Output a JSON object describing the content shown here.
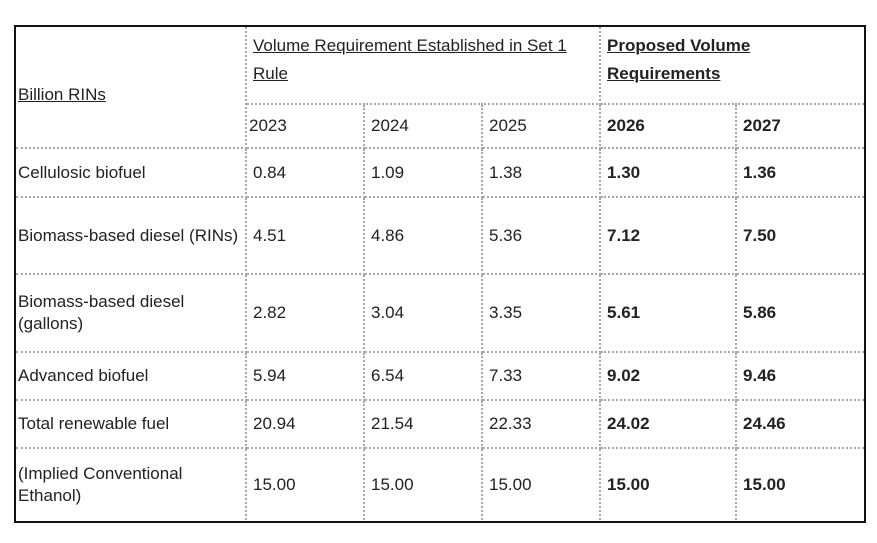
{
  "table": {
    "header": {
      "row_label": "Billion RINs",
      "group_set1": "Volume Requirement Established in Set 1 Rule",
      "group_proposed": "Proposed Volume Requirements",
      "years": [
        "2023",
        "2024",
        "2025",
        "2026",
        "2027"
      ]
    },
    "rows": [
      {
        "label": "Cellulosic biofuel",
        "values": [
          "0.84",
          "1.09",
          "1.38",
          "1.30",
          "1.36"
        ]
      },
      {
        "label": "Biomass-based diesel (RINs)",
        "values": [
          "4.51",
          "4.86",
          "5.36",
          "7.12",
          "7.50"
        ]
      },
      {
        "label": "Biomass-based diesel (gallons)",
        "values": [
          "2.82",
          "3.04",
          "3.35",
          "5.61",
          "5.86"
        ]
      },
      {
        "label": "Advanced biofuel",
        "values": [
          "5.94",
          "6.54",
          "7.33",
          "9.02",
          "9.46"
        ]
      },
      {
        "label": "Total renewable fuel",
        "values": [
          "20.94",
          "21.54",
          "22.33",
          "24.02",
          "24.46"
        ]
      },
      {
        "label": "(Implied Conventional Ethanol)",
        "values": [
          "15.00",
          "15.00",
          "15.00",
          "15.00",
          "15.00"
        ]
      }
    ]
  }
}
